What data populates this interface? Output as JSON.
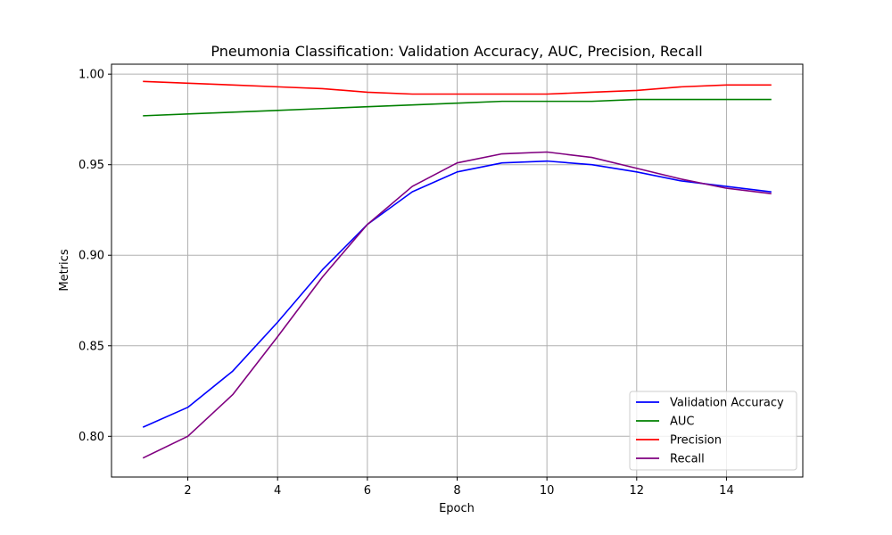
{
  "chart_data": {
    "type": "line",
    "title": "Pneumonia Classification: Validation Accuracy, AUC, Precision, Recall",
    "xlabel": "Epoch",
    "ylabel": "Metrics",
    "xlim": [
      0.3,
      15.7
    ],
    "ylim": [
      0.7775,
      1.0055
    ],
    "x_ticks": [
      2,
      4,
      6,
      8,
      10,
      12,
      14
    ],
    "x_tick_labels": [
      "2",
      "4",
      "6",
      "8",
      "10",
      "12",
      "14"
    ],
    "y_ticks": [
      0.8,
      0.85,
      0.9,
      0.95,
      1.0
    ],
    "y_tick_labels": [
      "0.80",
      "0.85",
      "0.90",
      "0.95",
      "1.00"
    ],
    "grid": true,
    "legend_position": "lower-right",
    "x": [
      1,
      2,
      3,
      4,
      5,
      6,
      7,
      8,
      9,
      10,
      11,
      12,
      13,
      14,
      15
    ],
    "series": [
      {
        "name": "Validation Accuracy",
        "color": "#0000ff",
        "values": [
          0.805,
          0.816,
          0.836,
          0.863,
          0.892,
          0.917,
          0.935,
          0.946,
          0.951,
          0.952,
          0.95,
          0.946,
          0.941,
          0.938,
          0.935
        ]
      },
      {
        "name": "AUC",
        "color": "#008000",
        "values": [
          0.977,
          0.978,
          0.979,
          0.98,
          0.981,
          0.982,
          0.983,
          0.984,
          0.985,
          0.985,
          0.985,
          0.986,
          0.986,
          0.986,
          0.986
        ]
      },
      {
        "name": "Precision",
        "color": "#ff0000",
        "values": [
          0.996,
          0.995,
          0.994,
          0.993,
          0.992,
          0.99,
          0.989,
          0.989,
          0.989,
          0.989,
          0.99,
          0.991,
          0.993,
          0.994,
          0.994
        ]
      },
      {
        "name": "Recall",
        "color": "#800080",
        "values": [
          0.788,
          0.8,
          0.823,
          0.855,
          0.888,
          0.917,
          0.938,
          0.951,
          0.956,
          0.957,
          0.954,
          0.948,
          0.942,
          0.937,
          0.934
        ]
      }
    ]
  }
}
